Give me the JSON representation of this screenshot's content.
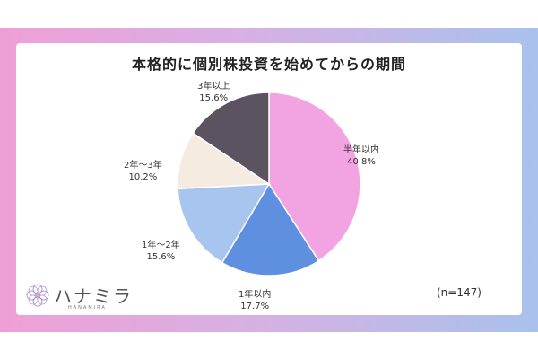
{
  "brand": {
    "name": "ハナミラ",
    "sub": "HANAMIRA"
  },
  "chart_data": {
    "type": "pie",
    "title": "本格的に個別株投資を始めてからの期間",
    "note": "(n=147)",
    "start": "top",
    "direction": "clockwise",
    "slices": [
      {
        "label": "半年以内",
        "value": 40.8,
        "value_label": "40.8%",
        "color": "#f1a4e1"
      },
      {
        "label": "1年以内",
        "value": 17.7,
        "value_label": "17.7%",
        "color": "#5f8fdf"
      },
      {
        "label": "1年〜2年",
        "value": 15.6,
        "value_label": "15.6%",
        "color": "#a7c5ef"
      },
      {
        "label": "2年〜3年",
        "value": 10.2,
        "value_label": "10.2%",
        "color": "#f5ebe1"
      },
      {
        "label": "3年以上",
        "value": 15.6,
        "value_label": "15.6%",
        "color": "#5b5360"
      }
    ]
  }
}
